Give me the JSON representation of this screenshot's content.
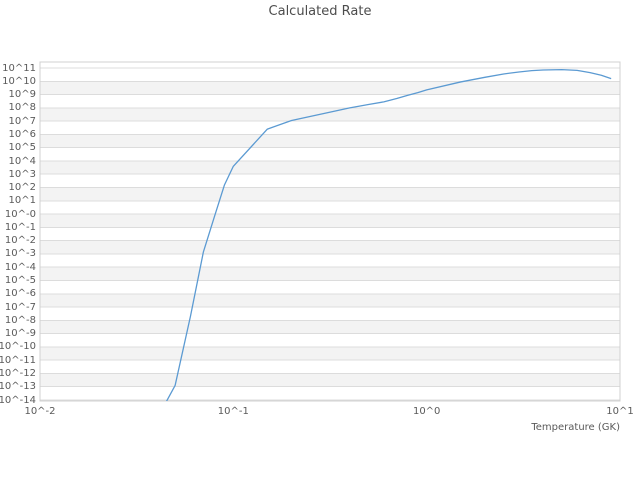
{
  "figure": {
    "title": "Calculated Rate",
    "x_axis_label": "Temperature (GK)",
    "x_tick_labels": [
      "10^-2",
      "10^-1",
      "10^0",
      "10^1"
    ],
    "y_tick_labels": [
      "10^11",
      "10^10",
      "10^9",
      "10^8",
      "10^7",
      "10^6",
      "10^5",
      "10^4",
      "10^3",
      "10^2",
      "10^1",
      "10^-0",
      "10^-1",
      "10^-2",
      "10^-3",
      "10^-4",
      "10^-5",
      "10^-6",
      "10^-7",
      "10^-8",
      "10^-9",
      "10^-10",
      "10^-11",
      "10^-12",
      "10^-13",
      "10^-14"
    ],
    "colors": {
      "line": "#5b9ad2",
      "gridline": "#dcdcdc",
      "band": "#f3f3f3",
      "border": "#d0d0d0",
      "tick_text": "#5a5a5a",
      "title_text": "#4d4d4d",
      "background": "#ffffff"
    }
  },
  "chart_data": {
    "type": "line",
    "title": "Calculated Rate",
    "xlabel": "Temperature (GK)",
    "ylabel": "",
    "x_scale": "log",
    "y_scale": "log",
    "xlim_log10": [
      -2,
      1
    ],
    "ylim_log10": [
      -14,
      11.45
    ],
    "x_ticks_log10": [
      -2,
      -1,
      0,
      1
    ],
    "y_ticks_log10": [
      11,
      10,
      9,
      8,
      7,
      6,
      5,
      4,
      3,
      2,
      1,
      0,
      -1,
      -2,
      -3,
      -4,
      -5,
      -6,
      -7,
      -8,
      -9,
      -10,
      -11,
      -12,
      -13,
      -14
    ],
    "grid": "horizontal gridlines only, alternating light-gray bands between decade pairs",
    "legend": "none",
    "gray_band_upper_exponents": [
      10,
      8,
      6,
      4,
      2,
      0,
      -2,
      -4,
      -6,
      -8,
      -10,
      -12
    ],
    "series": [
      {
        "name": "calculated-rate",
        "x_temperature_GK": [
          0.04,
          0.05,
          0.06,
          0.07,
          0.08,
          0.09,
          0.1,
          0.15,
          0.2,
          0.3,
          0.4,
          0.5,
          0.6,
          0.7,
          0.8,
          0.9,
          1.0,
          1.5,
          2.0,
          2.5,
          3.0,
          3.5,
          4.0,
          5.0,
          6.0,
          7.0,
          8.0,
          9.0
        ],
        "y_rate_log10": [
          -15.5,
          -12.9,
          -7.7,
          -2.85,
          -0.15,
          2.2,
          3.6,
          6.4,
          7.05,
          7.6,
          8.0,
          8.25,
          8.45,
          8.7,
          8.95,
          9.15,
          9.35,
          9.95,
          10.3,
          10.55,
          10.7,
          10.8,
          10.85,
          10.88,
          10.82,
          10.65,
          10.45,
          10.2
        ]
      }
    ]
  }
}
